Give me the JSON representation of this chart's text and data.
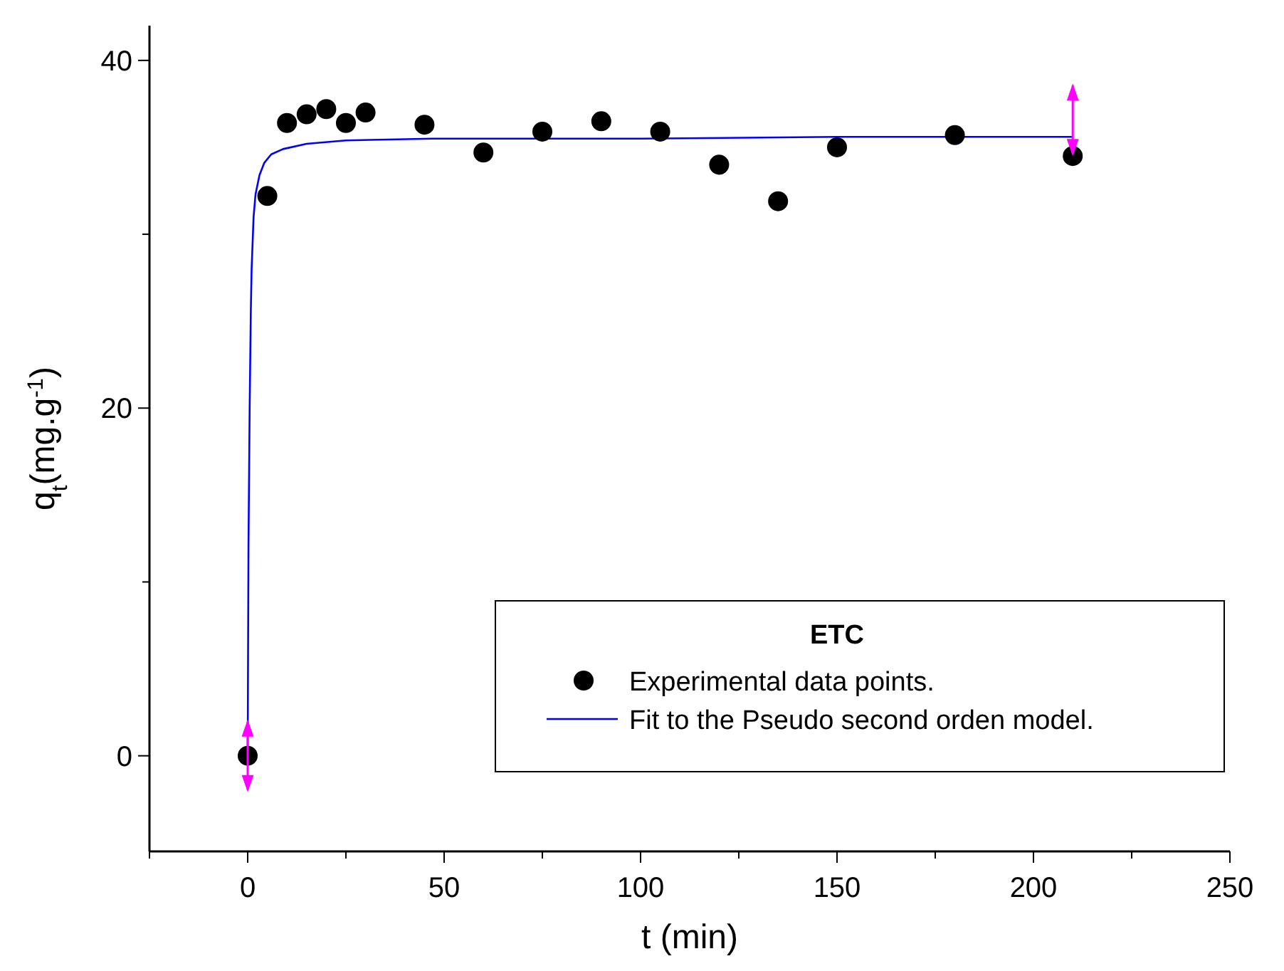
{
  "chart_data": {
    "type": "scatter",
    "xlabel": "t (min)",
    "ylabel": "q$_{t}$(mg.g$^{-1}$)",
    "legend_title": "ETC",
    "legend": "bottom right",
    "grid": false,
    "xlim": [
      -25,
      250
    ],
    "xticks": [
      {
        "value": -25,
        "label": null
      },
      0,
      {
        "value": 25,
        "label": null
      },
      50,
      {
        "value": 75,
        "label": null
      },
      100,
      {
        "value": 125,
        "label": null
      },
      150,
      {
        "value": 175,
        "label": null
      },
      200,
      {
        "value": 225,
        "label": null
      },
      250
    ],
    "ylim": [
      -5.5,
      42
    ],
    "yticks": [
      0,
      {
        "value": 10,
        "label": null
      },
      20,
      {
        "value": 30,
        "label": null
      },
      40
    ],
    "series": [
      {
        "name": "Experimental data points.",
        "marker": "circle",
        "color": "#000000",
        "x": [
          0,
          5,
          10,
          15,
          20,
          25,
          30,
          45,
          60,
          75,
          90,
          105,
          120,
          135,
          150,
          180,
          210
        ],
        "values": [
          0,
          32.2,
          36.4,
          36.9,
          37.2,
          36.4,
          37.0,
          36.3,
          34.7,
          35.9,
          36.5,
          35.9,
          34.0,
          31.9,
          35.0,
          35.7,
          34.5
        ]
      },
      {
        "name": "Fit to the Pseudo second orden model.",
        "type": "line",
        "line_style": "solid",
        "color": "#0000ff",
        "x": [
          0,
          0.2,
          0.5,
          0.8,
          1,
          1.5,
          2,
          3,
          4.2,
          6,
          9,
          15,
          25,
          47,
          100,
          150,
          210
        ],
        "values": [
          0,
          12,
          20,
          25.6,
          28,
          31,
          32.3,
          33.4,
          34.1,
          34.6,
          34.9,
          35.2,
          35.4,
          35.5,
          35.5,
          35.6,
          35.6
        ]
      }
    ]
  }
}
